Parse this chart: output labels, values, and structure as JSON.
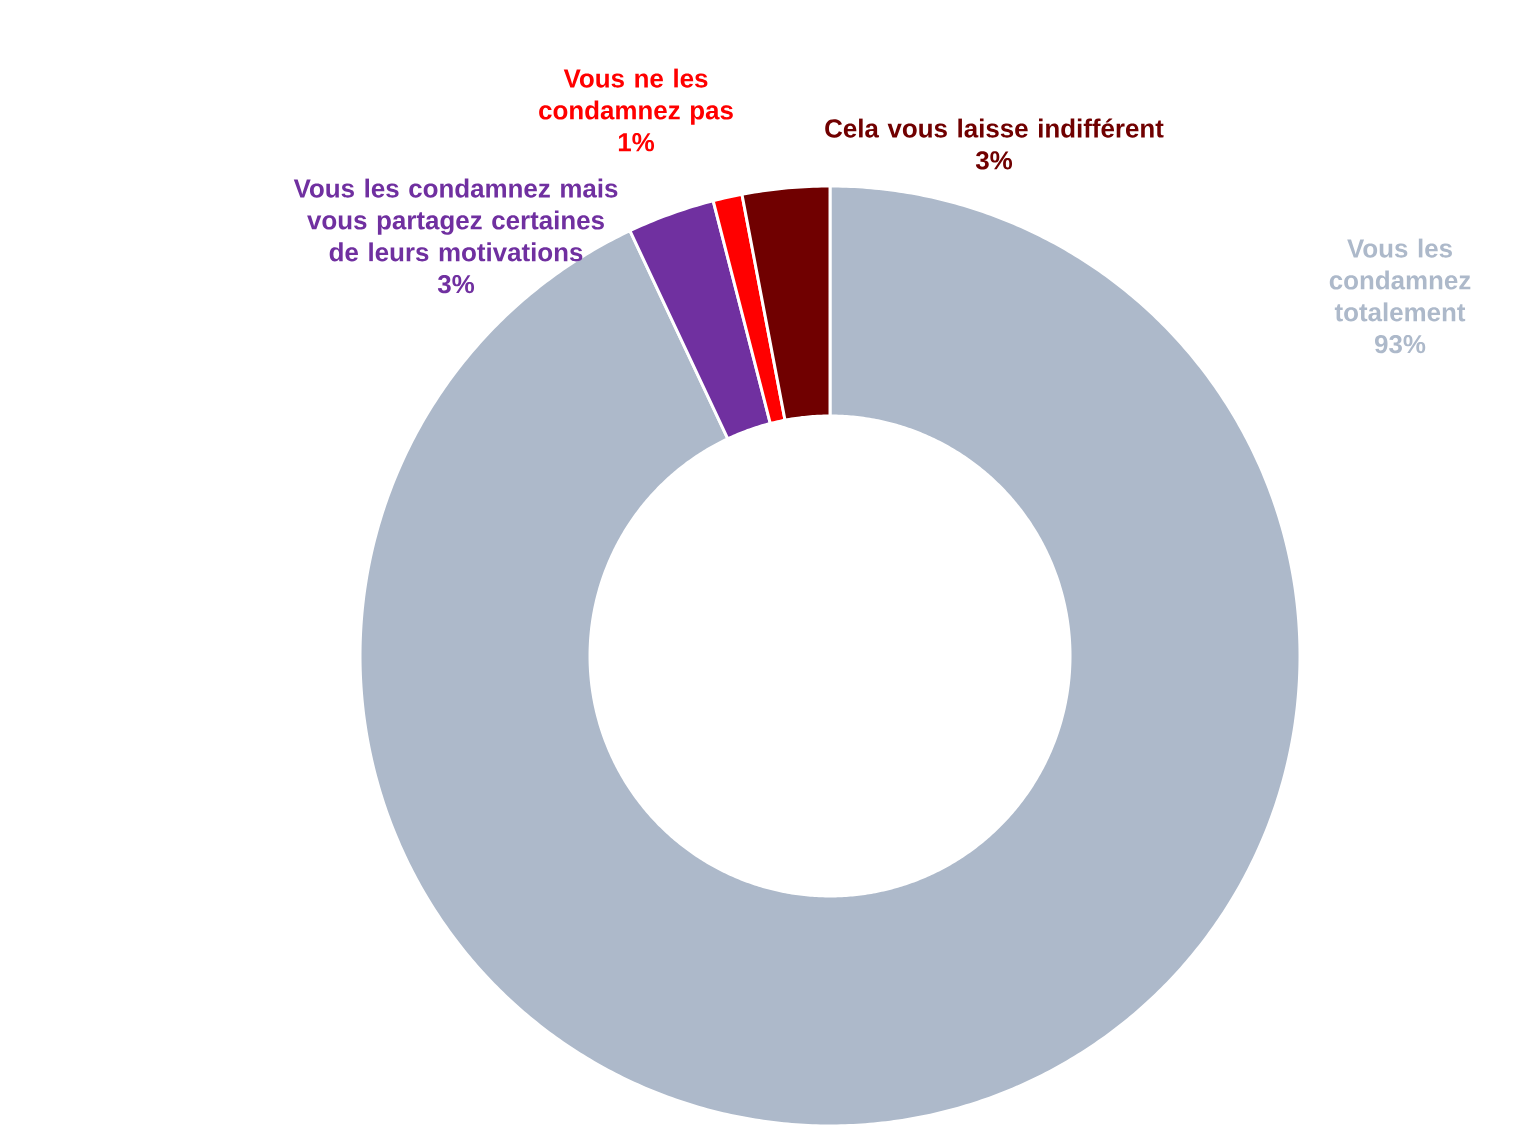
{
  "chart_data": {
    "type": "donut",
    "categories": [
      "Vous les condamnez totalement",
      "Vous les condamnez mais vous partagez certaines de leurs motivations",
      "Vous ne les condamnez pas",
      "Cela vous laisse indifférent"
    ],
    "values": [
      93,
      3,
      1,
      3
    ],
    "value_labels": [
      "93%",
      "3%",
      "1%",
      "3%"
    ],
    "colors": [
      "#adb9ca",
      "#7030a0",
      "#ff0000",
      "#700000"
    ]
  }
}
